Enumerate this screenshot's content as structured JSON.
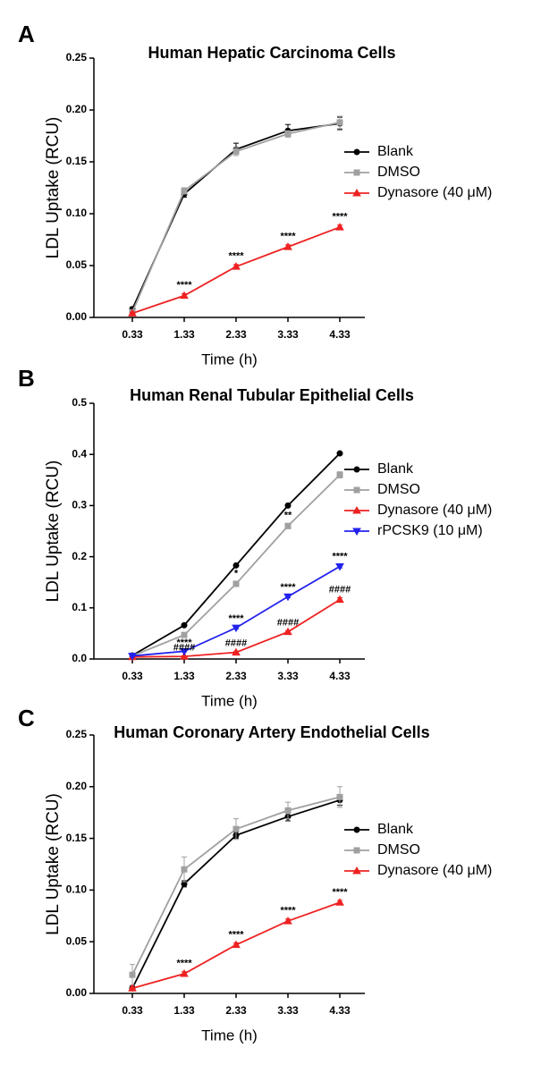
{
  "chart_data": [
    {
      "type": "line",
      "panel": "A",
      "title": "Human Hepatic Carcinoma Cells",
      "x_label": "Time (h)",
      "y_label": "LDL Uptake (RCU)",
      "categories": [
        "0.33",
        "1.33",
        "2.33",
        "3.33",
        "4.33"
      ],
      "ylim": [
        0,
        0.25
      ],
      "yticks": [
        {
          "value": 0,
          "label": "0.00"
        },
        {
          "value": 0.05,
          "label": "0.05"
        },
        {
          "value": 0.1,
          "label": "0.10"
        },
        {
          "value": 0.15,
          "label": "0.15"
        },
        {
          "value": 0.2,
          "label": "0.20"
        },
        {
          "value": 0.25,
          "label": "0.25"
        }
      ],
      "series": [
        {
          "name": "Blank",
          "color": "#000000",
          "marker": "circle",
          "values": [
            0.008,
            0.119,
            0.162,
            0.18,
            0.187
          ],
          "errors": [
            0.002,
            0.003,
            0.006,
            0.006,
            0.006
          ]
        },
        {
          "name": "DMSO",
          "color": "#a0a0a0",
          "marker": "square",
          "values": [
            0.005,
            0.122,
            0.16,
            0.177,
            0.188
          ],
          "errors": [
            0.002,
            0.003,
            0.004,
            0.003,
            0.006
          ]
        },
        {
          "name": "Dynasore (40 μM)",
          "color": "#ee2222",
          "marker": "triangle-up",
          "values": [
            0.004,
            0.021,
            0.049,
            0.068,
            0.087
          ],
          "errors": [
            0.001,
            0.002,
            0.002,
            0.002,
            0.002
          ]
        }
      ],
      "annotations": [
        {
          "text": "****",
          "series": "Dynasore (40 μM)",
          "at": "1.33"
        },
        {
          "text": "****",
          "series": "Dynasore (40 μM)",
          "at": "2.33"
        },
        {
          "text": "****",
          "series": "Dynasore (40 μM)",
          "at": "3.33"
        },
        {
          "text": "****",
          "series": "Dynasore (40 μM)",
          "at": "4.33"
        }
      ]
    },
    {
      "type": "line",
      "panel": "B",
      "title": "Human Renal Tubular Epithelial Cells",
      "x_label": "Time (h)",
      "y_label": "LDL Uptake (RCU)",
      "categories": [
        "0.33",
        "1.33",
        "2.33",
        "3.33",
        "4.33"
      ],
      "ylim": [
        0,
        0.5
      ],
      "yticks": [
        {
          "value": 0,
          "label": "0.0"
        },
        0.1,
        0.2,
        0.3,
        0.4,
        0.5
      ],
      "series": [
        {
          "name": "Blank",
          "color": "#000000",
          "marker": "circle",
          "values": [
            0.007,
            0.066,
            0.183,
            0.3,
            0.402
          ],
          "errors": [
            0.001,
            0.002,
            0.002,
            0.002,
            0.002
          ]
        },
        {
          "name": "DMSO",
          "color": "#a0a0a0",
          "marker": "square",
          "values": [
            0.006,
            0.047,
            0.147,
            0.26,
            0.36
          ],
          "errors": [
            0.001,
            0.002,
            0.004,
            0.005,
            0.006
          ]
        },
        {
          "name": "Dynasore (40 μM)",
          "color": "#ee2222",
          "marker": "triangle-up",
          "values": [
            0.004,
            0.005,
            0.013,
            0.053,
            0.116
          ],
          "errors": [
            0.001,
            0.001,
            0.002,
            0.002,
            0.004
          ]
        },
        {
          "name": "rPCSK9 (10 μM)",
          "color": "#2222ee",
          "marker": "triangle-down",
          "values": [
            0.006,
            0.015,
            0.061,
            0.122,
            0.181
          ],
          "errors": [
            0.001,
            0.001,
            0.002,
            0.002,
            0.003
          ]
        }
      ],
      "annotations": [
        {
          "text": "*",
          "series": "DMSO",
          "at": "2.33"
        },
        {
          "text": "**",
          "series": "DMSO",
          "at": "3.33"
        },
        {
          "text": "****",
          "series": "rPCSK9 (10 μM)",
          "at": "1.33"
        },
        {
          "text": "****",
          "series": "rPCSK9 (10 μM)",
          "at": "2.33"
        },
        {
          "text": "****",
          "series": "rPCSK9 (10 μM)",
          "at": "3.33"
        },
        {
          "text": "****",
          "series": "rPCSK9 (10 μM)",
          "at": "4.33"
        },
        {
          "text": "####",
          "series": "Dynasore (40 μM)",
          "at": "1.33"
        },
        {
          "text": "####",
          "series": "Dynasore (40 μM)",
          "at": "2.33"
        },
        {
          "text": "####",
          "series": "Dynasore (40 μM)",
          "at": "3.33"
        },
        {
          "text": "####",
          "series": "Dynasore (40 μM)",
          "at": "4.33"
        }
      ]
    },
    {
      "type": "line",
      "panel": "C",
      "title": "Human Coronary Artery Endothelial Cells",
      "x_label": "Time (h)",
      "y_label": "LDL Uptake (RCU)",
      "categories": [
        "0.33",
        "1.33",
        "2.33",
        "3.33",
        "4.33"
      ],
      "ylim": [
        0,
        0.25
      ],
      "yticks": [
        {
          "value": 0,
          "label": "0.00"
        },
        {
          "value": 0.05,
          "label": "0.05"
        },
        {
          "value": 0.1,
          "label": "0.10"
        },
        {
          "value": 0.15,
          "label": "0.15"
        },
        {
          "value": 0.2,
          "label": "0.20"
        },
        {
          "value": 0.25,
          "label": "0.25"
        }
      ],
      "series": [
        {
          "name": "Blank",
          "color": "#000000",
          "marker": "circle",
          "values": [
            0.005,
            0.106,
            0.153,
            0.171,
            0.187
          ],
          "errors": [
            0.002,
            0.003,
            0.003,
            0.004,
            0.005
          ]
        },
        {
          "name": "DMSO",
          "color": "#a0a0a0",
          "marker": "square",
          "values": [
            0.018,
            0.12,
            0.159,
            0.177,
            0.19
          ],
          "errors": [
            0.01,
            0.012,
            0.01,
            0.008,
            0.01
          ]
        },
        {
          "name": "Dynasore (40 μM)",
          "color": "#ee2222",
          "marker": "triangle-up",
          "values": [
            0.005,
            0.019,
            0.047,
            0.07,
            0.088
          ],
          "errors": [
            0.001,
            0.002,
            0.002,
            0.002,
            0.002
          ]
        }
      ],
      "annotations": [
        {
          "text": "****",
          "series": "Dynasore (40 μM)",
          "at": "1.33"
        },
        {
          "text": "****",
          "series": "Dynasore (40 μM)",
          "at": "2.33"
        },
        {
          "text": "****",
          "series": "Dynasore (40 μM)",
          "at": "3.33"
        },
        {
          "text": "****",
          "series": "Dynasore (40 μM)",
          "at": "4.33"
        }
      ]
    }
  ]
}
